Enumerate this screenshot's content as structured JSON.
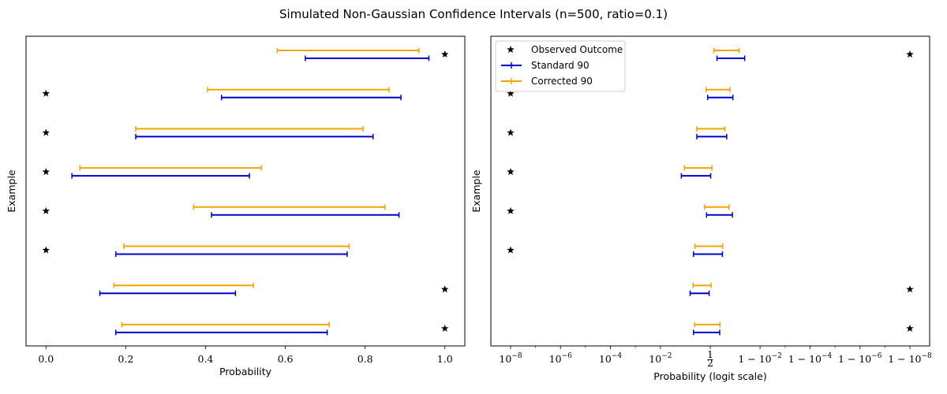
{
  "figure_title": "Simulated Non-Gaussian Confidence Intervals (n=500, ratio=0.1)",
  "colors": {
    "standard": "#0000cc",
    "corrected": "#f5a300",
    "outcome": "#000000",
    "frame": "#000000"
  },
  "chart_data": [
    {
      "type": "interval",
      "title": "",
      "xlabel": "Probability",
      "ylabel": "Example",
      "xscale": "linear",
      "xlim": [
        -0.05,
        1.05
      ],
      "xticks": [
        0.0,
        0.2,
        0.4,
        0.6,
        0.8,
        1.0
      ],
      "xtick_labels": [
        "0.0",
        "0.2",
        "0.4",
        "0.6",
        "0.8",
        "1.0"
      ],
      "grid": false,
      "series": [
        {
          "name": "Observed Outcome",
          "kind": "marker",
          "values": [
            1,
            0,
            0,
            0,
            0,
            0,
            1,
            1
          ]
        },
        {
          "name": "Standard 90",
          "kind": "interval",
          "lower": [
            0.65,
            0.44,
            0.225,
            0.065,
            0.415,
            0.175,
            0.135,
            0.175
          ],
          "upper": [
            0.96,
            0.89,
            0.82,
            0.51,
            0.885,
            0.755,
            0.475,
            0.705
          ]
        },
        {
          "name": "Corrected 90",
          "kind": "interval",
          "lower": [
            0.58,
            0.405,
            0.225,
            0.085,
            0.37,
            0.195,
            0.17,
            0.19
          ],
          "upper": [
            0.935,
            0.86,
            0.795,
            0.54,
            0.85,
            0.76,
            0.52,
            0.71
          ]
        }
      ]
    },
    {
      "type": "interval",
      "title": "",
      "xlabel": "Probability (logit scale)",
      "ylabel": "Example",
      "xscale": "logit",
      "xticks": [
        1e-08,
        1e-06,
        0.0001,
        0.01,
        0.5,
        0.99,
        0.9999,
        0.999999,
        0.99999999
      ],
      "xtick_labels": [
        "10^{-8}",
        "10^{-6}",
        "10^{-4}",
        "10^{-2}",
        "1/2",
        "1-10^{-2}",
        "1-10^{-4}",
        "1-10^{-6}",
        "1-10^{-8}"
      ],
      "grid": false,
      "legend": {
        "position": "upper-left"
      },
      "series": [
        {
          "name": "Observed Outcome",
          "kind": "marker",
          "values": [
            1,
            0,
            0,
            0,
            0,
            0,
            1,
            1
          ]
        },
        {
          "name": "Standard 90",
          "kind": "interval",
          "lower": [
            0.65,
            0.44,
            0.225,
            0.065,
            0.415,
            0.175,
            0.135,
            0.175
          ],
          "upper": [
            0.96,
            0.89,
            0.82,
            0.51,
            0.885,
            0.755,
            0.475,
            0.705
          ]
        },
        {
          "name": "Corrected 90",
          "kind": "interval",
          "lower": [
            0.58,
            0.405,
            0.225,
            0.085,
            0.37,
            0.195,
            0.17,
            0.19
          ],
          "upper": [
            0.935,
            0.86,
            0.795,
            0.54,
            0.85,
            0.76,
            0.52,
            0.71
          ]
        }
      ]
    }
  ]
}
